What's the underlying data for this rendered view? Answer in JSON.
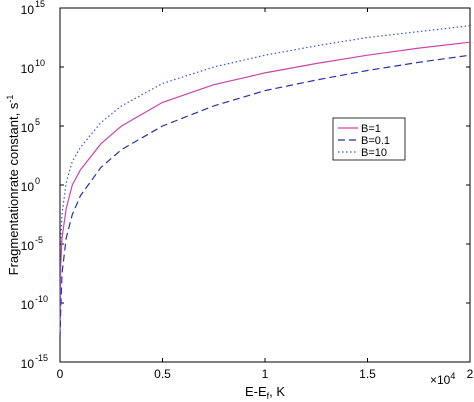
{
  "chart_data": {
    "type": "line",
    "title": "",
    "xlabel": "E-E_f, K",
    "ylabel": "Fragmentationrate constant, s^-1",
    "x_multiplier_label": "×10^4",
    "y_scale": "log",
    "xlim": [
      0,
      20000
    ],
    "ylim": [
      1e-15,
      1000000000000000.0
    ],
    "x_ticks": [
      0,
      5000,
      10000,
      15000,
      20000
    ],
    "x_tick_labels": [
      "0",
      "0.5",
      "1",
      "1.5",
      "2"
    ],
    "y_ticks": [
      -15,
      -10,
      -5,
      0,
      5,
      10,
      15
    ],
    "y_tick_labels": [
      {
        "base": "10",
        "exp": "-15"
      },
      {
        "base": "10",
        "exp": "-10"
      },
      {
        "base": "10",
        "exp": "-5"
      },
      {
        "base": "10",
        "exp": "0"
      },
      {
        "base": "10",
        "exp": "5"
      },
      {
        "base": "10",
        "exp": "10"
      },
      {
        "base": "10",
        "exp": "15"
      }
    ],
    "grid": false,
    "legend_position": "right-middle",
    "x": [
      30,
      100,
      300,
      600,
      1000,
      2000,
      3000,
      5000,
      7500,
      10000,
      12500,
      15000,
      17500,
      20000
    ],
    "series": [
      {
        "name": "B=1",
        "color": "#cc44aa",
        "dash": "solid",
        "log10_values": [
          -7,
          -4.5,
          -2,
          0,
          1.3,
          3.5,
          5.0,
          7.0,
          8.5,
          9.5,
          10.3,
          11.0,
          11.6,
          12.1
        ]
      },
      {
        "name": "B=0.1",
        "color": "#2233aa",
        "dash": "dashed",
        "log10_values": [
          -11,
          -7.5,
          -4.5,
          -2.5,
          -0.9,
          1.5,
          3.0,
          5.0,
          6.7,
          8.0,
          8.9,
          9.7,
          10.4,
          11.0
        ]
      },
      {
        "name": "B=10",
        "color": "#3355cc",
        "dash": "dotted",
        "log10_values": [
          -5,
          -2.5,
          0.2,
          2.0,
          3.2,
          5.3,
          6.7,
          8.6,
          10.0,
          11.0,
          11.8,
          12.5,
          13.0,
          13.5
        ]
      }
    ]
  }
}
